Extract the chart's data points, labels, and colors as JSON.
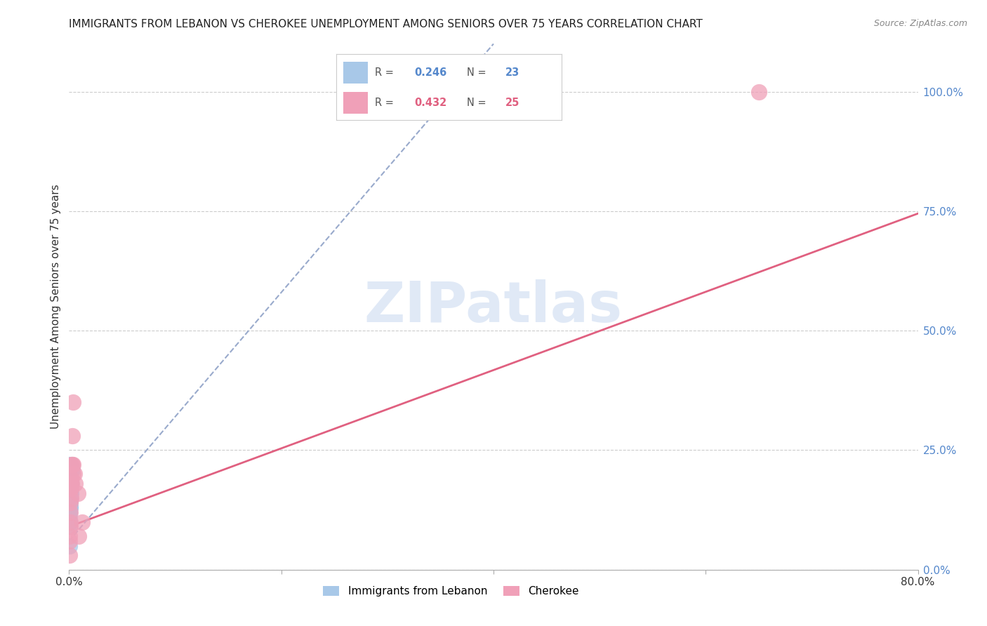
{
  "title": "IMMIGRANTS FROM LEBANON VS CHEROKEE UNEMPLOYMENT AMONG SENIORS OVER 75 YEARS CORRELATION CHART",
  "source": "Source: ZipAtlas.com",
  "ylabel": "Unemployment Among Seniors over 75 years",
  "xlim": [
    0.0,
    0.8
  ],
  "ylim": [
    0.0,
    1.1
  ],
  "x_ticks": [
    0.0,
    0.2,
    0.4,
    0.6,
    0.8
  ],
  "x_tick_labels": [
    "0.0%",
    "",
    "",
    "",
    "80.0%"
  ],
  "y_ticks": [
    0.0,
    0.25,
    0.5,
    0.75,
    1.0
  ],
  "y_tick_labels_right": [
    "0.0%",
    "25.0%",
    "50.0%",
    "75.0%",
    "100.0%"
  ],
  "watermark_text": "ZIPatlas",
  "lebanon_R": 0.246,
  "lebanon_N": 23,
  "cherokee_R": 0.432,
  "cherokee_N": 25,
  "lebanon_color": "#a8c8e8",
  "cherokee_color": "#f0a0b8",
  "lebanon_line_color": "#99aacc",
  "cherokee_line_color": "#e06080",
  "background_color": "#ffffff",
  "lebanon_x": [
    0.0003,
    0.0003,
    0.0004,
    0.0004,
    0.0005,
    0.0005,
    0.0006,
    0.0007,
    0.0007,
    0.0008,
    0.0009,
    0.001,
    0.001,
    0.001,
    0.0012,
    0.0013,
    0.0015,
    0.0015,
    0.0018,
    0.002,
    0.002,
    0.003,
    0.0
  ],
  "lebanon_y": [
    0.05,
    0.09,
    0.1,
    0.12,
    0.1,
    0.13,
    0.11,
    0.12,
    0.14,
    0.13,
    0.15,
    0.13,
    0.15,
    0.2,
    0.14,
    0.16,
    0.16,
    0.18,
    0.18,
    0.19,
    0.22,
    0.21,
    0.22
  ],
  "cherokee_x": [
    0.0003,
    0.0005,
    0.0007,
    0.0008,
    0.001,
    0.001,
    0.0012,
    0.0013,
    0.0015,
    0.0015,
    0.002,
    0.002,
    0.0022,
    0.0025,
    0.003,
    0.003,
    0.0035,
    0.004,
    0.004,
    0.005,
    0.006,
    0.008,
    0.012,
    0.65,
    0.009
  ],
  "cherokee_y": [
    0.03,
    0.06,
    0.07,
    0.1,
    0.09,
    0.14,
    0.12,
    0.17,
    0.15,
    0.18,
    0.17,
    0.19,
    0.22,
    0.18,
    0.22,
    0.28,
    0.2,
    0.22,
    0.35,
    0.2,
    0.18,
    0.16,
    0.1,
    1.0,
    0.07
  ],
  "cherokee_line_x0": 0.0,
  "cherokee_line_y0": 0.09,
  "cherokee_line_x1": 0.8,
  "cherokee_line_y1": 0.745,
  "lebanon_line_x0": 0.0,
  "lebanon_line_y0": 0.06,
  "lebanon_line_x1": 0.4,
  "lebanon_line_y1": 1.1
}
